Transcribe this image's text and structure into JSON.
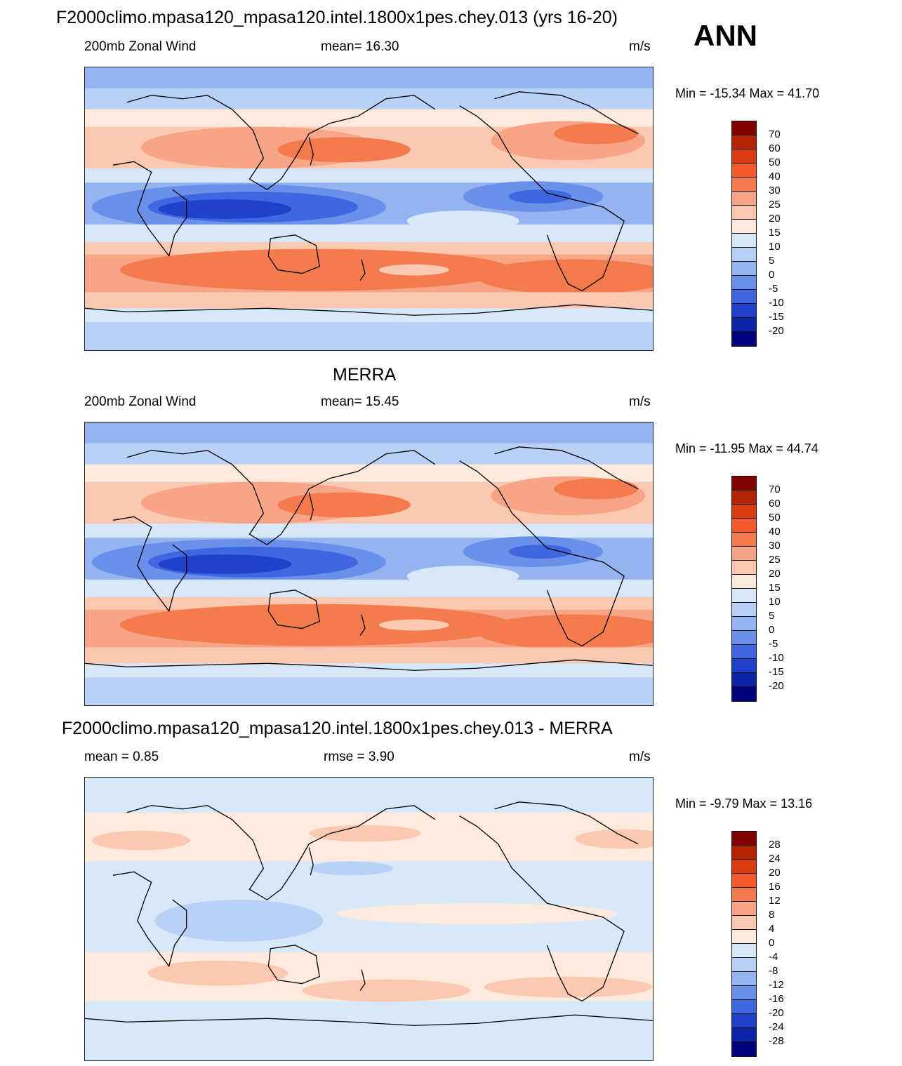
{
  "header": {
    "title": "F2000climo.mpasa120_mpasa120.intel.1800x1pes.chey.013 (yrs 16-20)",
    "season": "ANN"
  },
  "panels": [
    {
      "id": "model",
      "left_label": "200mb Zonal Wind",
      "center_label": "mean=  16.30",
      "units": "m/s",
      "minmax": "Min = -15.34 Max =  41.70",
      "colorbar_labels": [
        "70",
        "60",
        "50",
        "40",
        "30",
        "25",
        "20",
        "15",
        "10",
        "5",
        "0",
        "-5",
        "-10",
        "-15",
        "-20"
      ]
    },
    {
      "id": "obs",
      "title": "MERRA",
      "left_label": "200mb Zonal Wind",
      "center_label": "mean=  15.45",
      "units": "m/s",
      "minmax": "Min = -11.95 Max =  44.74",
      "colorbar_labels": [
        "70",
        "60",
        "50",
        "40",
        "30",
        "25",
        "20",
        "15",
        "10",
        "5",
        "0",
        "-5",
        "-10",
        "-15",
        "-20"
      ]
    },
    {
      "id": "diff",
      "title": "F2000climo.mpasa120_mpasa120.intel.1800x1pes.chey.013 - MERRA",
      "left_label": "mean =   0.85",
      "center_label": "rmse =   3.90",
      "units": "m/s",
      "minmax": "Min =  -9.79 Max =  13.16",
      "colorbar_labels": [
        "28",
        "24",
        "20",
        "16",
        "12",
        "8",
        "4",
        "0",
        "-4",
        "-8",
        "-12",
        "-16",
        "-20",
        "-24",
        "-28"
      ]
    }
  ],
  "colors": {
    "palette": [
      "#800000",
      "#b32400",
      "#d93c0f",
      "#f45a2a",
      "#f47b4e",
      "#f8a487",
      "#fbc9b1",
      "#fdeadc",
      "#d8e8fb",
      "#b9d0f7",
      "#94b4f1",
      "#6a90ea",
      "#3f67e0",
      "#1f41cc",
      "#0c25a7",
      "#00007d"
    ],
    "coast": "#000000"
  }
}
